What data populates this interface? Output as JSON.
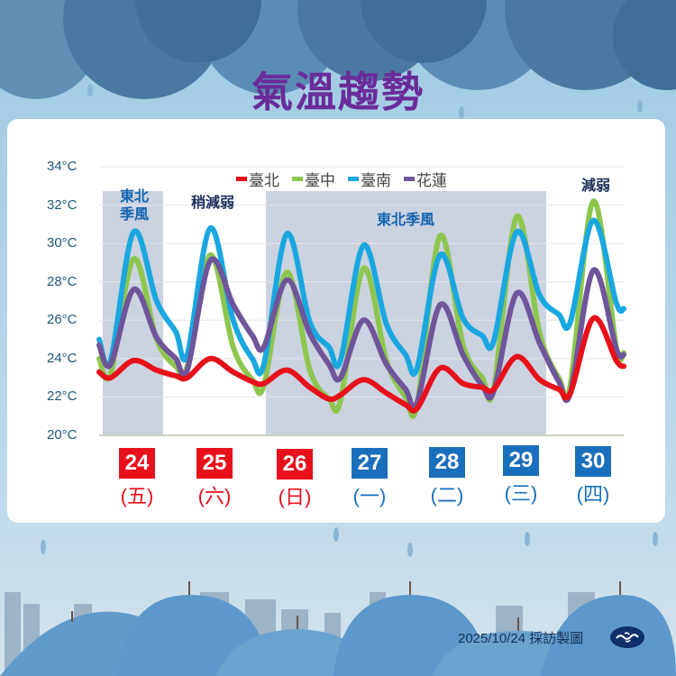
{
  "header": {
    "title": "氣溫趨勢"
  },
  "legend": [
    {
      "label": "臺北",
      "color": "#e8101a"
    },
    {
      "label": "臺中",
      "color": "#8dc64e"
    },
    {
      "label": "臺南",
      "color": "#1aa7e0"
    },
    {
      "label": "花蓮",
      "color": "#6f559a"
    }
  ],
  "annotations": [
    {
      "text": "東北\n季風",
      "color": "#1565b0"
    },
    {
      "text": "稍減弱",
      "color": "#1a2e5a"
    },
    {
      "text": "東北季風",
      "color": "#1565b0"
    },
    {
      "text": "減弱",
      "color": "#1a2e5a"
    }
  ],
  "days": [
    {
      "date": "24",
      "weekday": "(五)",
      "color": "#e8101a"
    },
    {
      "date": "25",
      "weekday": "(六)",
      "color": "#e8101a"
    },
    {
      "date": "26",
      "weekday": "(日)",
      "color": "#e8101a"
    },
    {
      "date": "27",
      "weekday": "(一)",
      "color": "#1a6fbd"
    },
    {
      "date": "28",
      "weekday": "(二)",
      "color": "#1a6fbd"
    },
    {
      "date": "29",
      "weekday": "(三)",
      "color": "#1a6fbd"
    },
    {
      "date": "30",
      "weekday": "(四)",
      "color": "#1a6fbd"
    }
  ],
  "footer": {
    "credit": "2025/10/24 採訪製圖",
    "logo": "cna-logo-icon"
  },
  "chart_data": {
    "type": "line",
    "title": "氣溫趨勢",
    "xlabel": "",
    "ylabel": "°C",
    "ylim": [
      20,
      34
    ],
    "yticks": [
      "20°C",
      "22°C",
      "24°C",
      "26°C",
      "28°C",
      "30°C",
      "32°C",
      "34°C"
    ],
    "grid": true,
    "legend_position": "top",
    "categories": [
      "24 (五)",
      "25 (六)",
      "26 (日)",
      "27 (一)",
      "28 (二)",
      "29 (三)",
      "30 (四)"
    ],
    "x": [
      0,
      0.15,
      0.45,
      0.75,
      1,
      1.15,
      1.45,
      1.75,
      2,
      2.15,
      2.45,
      2.75,
      3,
      3.15,
      3.45,
      3.75,
      4,
      4.15,
      4.45,
      4.75,
      5,
      5.15,
      5.45,
      5.75,
      6,
      6.15,
      6.45,
      6.75
    ],
    "x_note": "x in day units; 0 = start of 24th, samples ~ 00,04,11,18 h each day",
    "series": [
      {
        "name": "臺北",
        "color": "#e8101a",
        "values": [
          23.3,
          23.0,
          23.9,
          23.4,
          23.1,
          23.0,
          24.0,
          23.3,
          22.8,
          22.7,
          23.4,
          22.5,
          21.9,
          22.1,
          22.9,
          22.2,
          21.6,
          21.4,
          23.5,
          22.7,
          22.5,
          22.4,
          24.1,
          22.9,
          22.4,
          22.2,
          26.1,
          23.9
        ]
      },
      {
        "name": "臺中",
        "color": "#8dc64e",
        "values": [
          24.0,
          23.2,
          29.2,
          25.0,
          23.6,
          23.6,
          29.4,
          24.6,
          22.9,
          22.6,
          28.5,
          23.4,
          21.9,
          21.8,
          28.7,
          23.9,
          22.0,
          21.6,
          30.4,
          24.7,
          23.0,
          22.4,
          31.4,
          25.3,
          23.0,
          22.6,
          32.2,
          24.6
        ]
      },
      {
        "name": "臺南",
        "color": "#1aa7e0",
        "values": [
          25.0,
          23.9,
          30.6,
          27.0,
          25.4,
          24.2,
          30.8,
          26.0,
          24.0,
          23.7,
          30.5,
          25.9,
          24.6,
          23.9,
          29.9,
          25.8,
          24.2,
          23.5,
          29.4,
          26.1,
          25.2,
          24.9,
          30.6,
          27.3,
          26.3,
          25.9,
          31.2,
          26.9
        ]
      },
      {
        "name": "花蓮",
        "color": "#6f559a",
        "values": [
          24.7,
          23.7,
          27.6,
          25.1,
          24.0,
          23.4,
          29.1,
          26.8,
          25.2,
          24.6,
          28.1,
          25.3,
          23.7,
          23.0,
          26.0,
          23.7,
          22.4,
          21.7,
          26.8,
          24.2,
          22.6,
          22.3,
          27.4,
          24.8,
          22.8,
          22.2,
          28.6,
          24.5
        ]
      }
    ],
    "shaded_regions": [
      {
        "from": "24",
        "to": "24 evening",
        "label": "東北季風"
      },
      {
        "from": "26",
        "to": "29",
        "label": "東北季風"
      }
    ]
  }
}
